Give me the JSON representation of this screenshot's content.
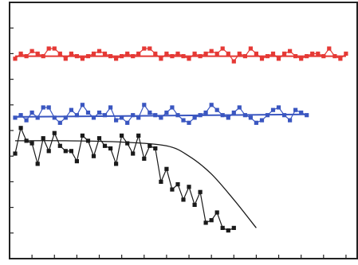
{
  "chart_data": {
    "type": "line",
    "title": "",
    "xlabel": "",
    "ylabel": "",
    "x": [
      1,
      2,
      3,
      4,
      5,
      6,
      7,
      8,
      9,
      10,
      11,
      12,
      13,
      14,
      15,
      16,
      17,
      18,
      19,
      20,
      21,
      22,
      23,
      24,
      25,
      26,
      27,
      28,
      29,
      30,
      31,
      32,
      33,
      34,
      35,
      36,
      37,
      38,
      39,
      40,
      41,
      42,
      43,
      44,
      45,
      46,
      47,
      48,
      49,
      50,
      51,
      52,
      53,
      54,
      55,
      56,
      57,
      58,
      59,
      60
    ],
    "xlim": [
      0,
      62
    ],
    "ylim": [
      0,
      100
    ],
    "grid": false,
    "legend": "none",
    "series": [
      {
        "color": "#e53935",
        "marker": "square",
        "fit": {
          "kind": "constant",
          "value": 79
        },
        "points": [
          [
            1,
            78
          ],
          [
            2,
            80
          ],
          [
            3,
            79
          ],
          [
            4,
            81
          ],
          [
            5,
            80
          ],
          [
            6,
            79
          ],
          [
            7,
            82
          ],
          [
            8,
            82
          ],
          [
            9,
            80
          ],
          [
            10,
            78
          ],
          [
            11,
            80
          ],
          [
            12,
            79
          ],
          [
            13,
            78
          ],
          [
            14,
            79
          ],
          [
            15,
            80
          ],
          [
            16,
            81
          ],
          [
            17,
            80
          ],
          [
            18,
            79
          ],
          [
            19,
            78
          ],
          [
            20,
            79
          ],
          [
            21,
            80
          ],
          [
            22,
            79
          ],
          [
            23,
            80
          ],
          [
            24,
            82
          ],
          [
            25,
            82
          ],
          [
            26,
            80
          ],
          [
            27,
            78
          ],
          [
            28,
            80
          ],
          [
            29,
            79
          ],
          [
            30,
            80
          ],
          [
            31,
            79
          ],
          [
            32,
            78
          ],
          [
            33,
            80
          ],
          [
            34,
            79
          ],
          [
            35,
            80
          ],
          [
            36,
            81
          ],
          [
            37,
            80
          ],
          [
            38,
            82
          ],
          [
            39,
            80
          ],
          [
            40,
            77
          ],
          [
            41,
            80
          ],
          [
            42,
            79
          ],
          [
            43,
            82
          ],
          [
            44,
            80
          ],
          [
            45,
            78
          ],
          [
            46,
            79
          ],
          [
            47,
            80
          ],
          [
            48,
            78
          ],
          [
            49,
            80
          ],
          [
            50,
            81
          ],
          [
            51,
            79
          ],
          [
            52,
            78
          ],
          [
            53,
            79
          ],
          [
            54,
            80
          ],
          [
            55,
            80
          ],
          [
            56,
            79
          ],
          [
            57,
            82
          ],
          [
            58,
            79
          ],
          [
            59,
            78
          ],
          [
            60,
            80
          ]
        ]
      },
      {
        "color": "#3a56c0",
        "marker": "square",
        "fit": {
          "kind": "linear",
          "x": [
            1,
            53
          ],
          "y": [
            55.3,
            56.3
          ]
        },
        "points": [
          [
            1,
            55
          ],
          [
            2,
            56
          ],
          [
            3,
            54
          ],
          [
            4,
            57
          ],
          [
            5,
            55
          ],
          [
            6,
            59
          ],
          [
            7,
            59
          ],
          [
            8,
            55
          ],
          [
            9,
            53
          ],
          [
            10,
            55
          ],
          [
            11,
            58
          ],
          [
            12,
            56
          ],
          [
            13,
            60
          ],
          [
            14,
            57
          ],
          [
            15,
            55
          ],
          [
            16,
            57
          ],
          [
            17,
            56
          ],
          [
            18,
            59
          ],
          [
            19,
            54
          ],
          [
            20,
            55
          ],
          [
            21,
            53
          ],
          [
            22,
            56
          ],
          [
            23,
            55
          ],
          [
            24,
            60
          ],
          [
            25,
            57
          ],
          [
            26,
            56
          ],
          [
            27,
            55
          ],
          [
            28,
            57
          ],
          [
            29,
            59
          ],
          [
            30,
            56
          ],
          [
            31,
            54
          ],
          [
            32,
            53
          ],
          [
            33,
            55
          ],
          [
            34,
            56
          ],
          [
            35,
            57
          ],
          [
            36,
            60
          ],
          [
            37,
            58
          ],
          [
            38,
            56
          ],
          [
            39,
            55
          ],
          [
            40,
            57
          ],
          [
            41,
            59
          ],
          [
            42,
            56
          ],
          [
            43,
            55
          ],
          [
            44,
            53
          ],
          [
            45,
            54
          ],
          [
            46,
            56
          ],
          [
            47,
            58
          ],
          [
            48,
            59
          ],
          [
            49,
            56
          ],
          [
            50,
            54
          ],
          [
            51,
            58
          ],
          [
            52,
            57
          ],
          [
            53,
            56
          ]
        ]
      },
      {
        "color": "#1a1a1a",
        "marker": "square",
        "fit": {
          "kind": "curve",
          "x": [
            1,
            10,
            20,
            28,
            32,
            36,
            40,
            44
          ],
          "y": [
            46,
            46,
            45.5,
            44,
            40,
            33,
            23,
            12
          ]
        },
        "points": [
          [
            1,
            41
          ],
          [
            2,
            51
          ],
          [
            3,
            46
          ],
          [
            4,
            45
          ],
          [
            5,
            37
          ],
          [
            6,
            47
          ],
          [
            7,
            42
          ],
          [
            8,
            49
          ],
          [
            9,
            44
          ],
          [
            10,
            42
          ],
          [
            11,
            42
          ],
          [
            12,
            38
          ],
          [
            13,
            48
          ],
          [
            14,
            46
          ],
          [
            15,
            40
          ],
          [
            16,
            47
          ],
          [
            17,
            44
          ],
          [
            18,
            43
          ],
          [
            19,
            37
          ],
          [
            20,
            48
          ],
          [
            21,
            45
          ],
          [
            22,
            41
          ],
          [
            23,
            48
          ],
          [
            24,
            39
          ],
          [
            25,
            44
          ],
          [
            26,
            43
          ],
          [
            27,
            30
          ],
          [
            28,
            35
          ],
          [
            29,
            27
          ],
          [
            30,
            29
          ],
          [
            31,
            23
          ],
          [
            32,
            28
          ],
          [
            33,
            21
          ],
          [
            34,
            26
          ],
          [
            35,
            14
          ],
          [
            36,
            15
          ],
          [
            37,
            18
          ],
          [
            38,
            12
          ],
          [
            39,
            11
          ],
          [
            40,
            12
          ]
        ]
      }
    ]
  }
}
